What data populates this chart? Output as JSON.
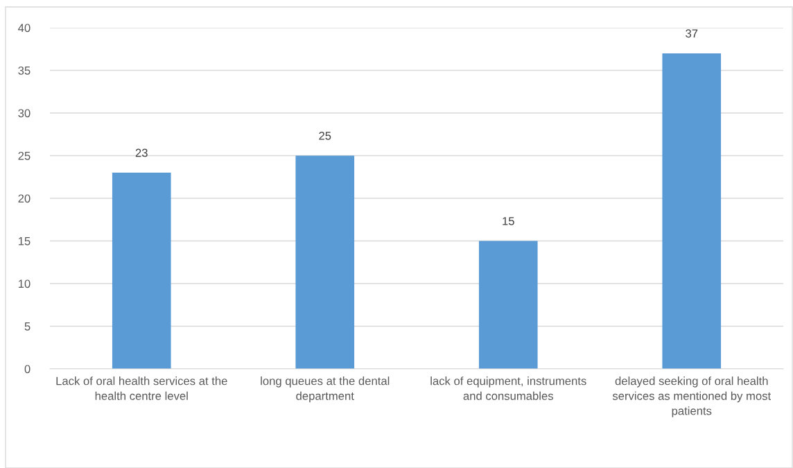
{
  "chart_data": {
    "type": "bar",
    "categories": [
      "Lack of oral health services at the health centre level",
      "long queues at the dental department",
      "lack of equipment, instruments and consumables",
      "delayed seeking of oral health services as mentioned by most patients"
    ],
    "values": [
      23,
      25,
      15,
      37
    ],
    "color": "#5b9bd5",
    "ylim": [
      0,
      40
    ],
    "yticks": [
      0,
      5,
      10,
      15,
      20,
      25,
      30,
      35,
      40
    ],
    "grid": "y",
    "data_labels": true
  }
}
